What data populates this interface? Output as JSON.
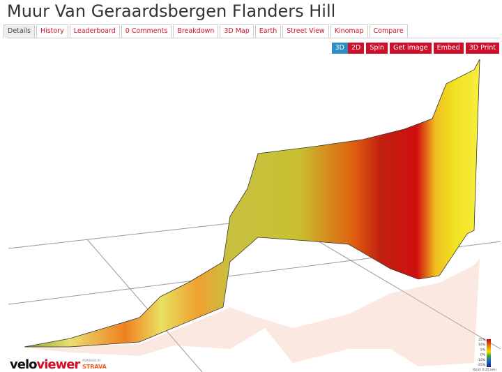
{
  "header": {
    "title": "Muur Van Geraardsbergen Flanders Hill"
  },
  "tabs": [
    "Details",
    "History",
    "Leaderboard",
    "0 Comments",
    "Breakdown",
    "3D Map",
    "Earth",
    "Street View",
    "Kinomap",
    "Compare"
  ],
  "buttons": [
    "3D",
    "2D",
    "Spin",
    "Get image",
    "Embed",
    "3D Print"
  ],
  "legend": {
    "labels": [
      "25%",
      "10%",
      "5%",
      "0%",
      "-10%",
      "-25%"
    ],
    "note": "(Grid: 0.25 km)"
  },
  "logo": {
    "name_start": "velo",
    "name_end": "viewer",
    "powered_by": "POWERED BY",
    "partner": "STRAVA"
  }
}
